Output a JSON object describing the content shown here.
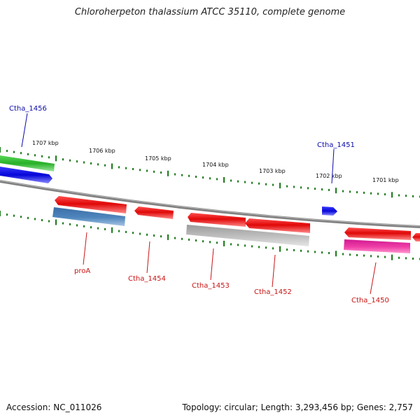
{
  "title": "Chloroherpeton thalassium ATCC 35110, complete genome",
  "footer": {
    "accession": "Accession: NC_011026",
    "summary": "Topology: circular; Length: 3,293,456 bp; Genes: 2,757"
  },
  "scale_labels": [
    "1707 kbp",
    "1706 kbp",
    "1705 kbp",
    "1704 kbp",
    "1703 kbp",
    "1702 kbp",
    "1701 kbp"
  ],
  "gene_labels": {
    "ctha_1456": "Ctha_1456",
    "ctha_1451": "Ctha_1451",
    "proa": "proA",
    "ctha_1454": "Ctha_1454",
    "ctha_1453": "Ctha_1453",
    "ctha_1452": "Ctha_1452",
    "ctha_1450": "Ctha_1450"
  },
  "colors": {
    "forward_gene": "#e01010",
    "reverse_gene": "#0a0ae0",
    "green_gene": "#34c034",
    "blue_band": "#4a7fb0",
    "grey_band": "#b4b4b4",
    "pink_band": "#e0309a",
    "tick": "#1a7a1a",
    "backbone": "#777777"
  }
}
